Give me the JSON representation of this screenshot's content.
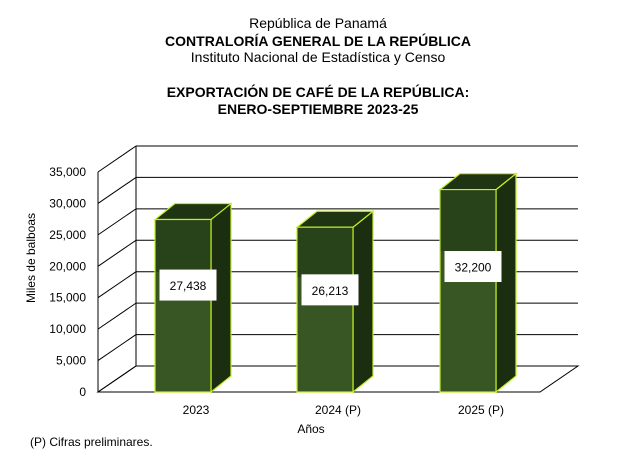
{
  "header": {
    "line1": "República de Panamá",
    "line2": "CONTRALORÍA GENERAL DE LA REPÚBLICA",
    "line3": "Instituto Nacional de Estadística y Censo"
  },
  "chart_data": {
    "type": "bar",
    "title": "EXPORTACIÓN DE CAFÉ DE LA REPÚBLICA:",
    "subtitle": "ENERO-SEPTIEMBRE 2023-25",
    "xlabel": "Años",
    "ylabel": "Miles de balboas",
    "categories": [
      "2023",
      "2024 (P)",
      "2025 (P)"
    ],
    "values": [
      27438,
      26213,
      32200
    ],
    "value_labels": [
      "27,438",
      "26,213",
      "32,200"
    ],
    "yticks": [
      "0",
      "5,000",
      "10,000",
      "15,000",
      "20,000",
      "25,000",
      "30,000",
      "35,000"
    ],
    "ylim": [
      0,
      35000
    ],
    "grid": true,
    "style": "3d-column",
    "colors": {
      "bar_front": "#375623",
      "bar_top": "#1e3412",
      "bar_side": "#1b2e10",
      "bar_edge": "#c4ef24"
    }
  },
  "footnote": "(P) Cifras  preliminares."
}
